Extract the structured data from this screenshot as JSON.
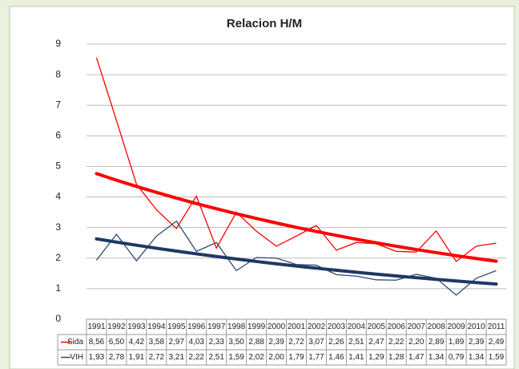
{
  "chart_data": {
    "type": "line",
    "title": "Relacion H/M",
    "categories": [
      "1991",
      "1992",
      "1993",
      "1994",
      "1995",
      "1996",
      "1997",
      "1998",
      "1999",
      "2000",
      "2001",
      "2002",
      "2003",
      "2004",
      "2005",
      "2006",
      "2007",
      "2008",
      "2009",
      "2010",
      "2011"
    ],
    "series": [
      {
        "name": "Sida",
        "color": "#ff0000",
        "trend_color": "#ff0000",
        "trendline": "exponential",
        "values": [
          8.56,
          6.5,
          4.42,
          3.58,
          2.97,
          4.03,
          2.33,
          3.5,
          2.88,
          2.39,
          2.72,
          3.07,
          2.26,
          2.51,
          2.47,
          2.22,
          2.2,
          2.89,
          1.89,
          2.39,
          2.49
        ],
        "value_labels": [
          "8,56",
          "6,50",
          "4,42",
          "3,58",
          "2,97",
          "4,03",
          "2,33",
          "3,50",
          "2,88",
          "2,39",
          "2,72",
          "3,07",
          "2,26",
          "2,51",
          "2,47",
          "2,22",
          "2,20",
          "2,89",
          "1,89",
          "2,39",
          "2,49"
        ]
      },
      {
        "name": "VIH",
        "color": "#2f4a73",
        "trend_color": "#1f3864",
        "trendline": "exponential",
        "values": [
          1.93,
          2.78,
          1.91,
          2.72,
          3.21,
          2.22,
          2.51,
          1.59,
          2.02,
          2.0,
          1.79,
          1.77,
          1.46,
          1.41,
          1.29,
          1.28,
          1.47,
          1.34,
          0.79,
          1.34,
          1.59
        ],
        "value_labels": [
          "1,93",
          "2,78",
          "1,91",
          "2,72",
          "3,21",
          "2,22",
          "2,51",
          "1,59",
          "2,02",
          "2,00",
          "1,79",
          "1,77",
          "1,46",
          "1,41",
          "1,29",
          "1,28",
          "1,47",
          "1,34",
          "0,79",
          "1,34",
          "1,59"
        ]
      }
    ],
    "ylim": [
      0,
      9
    ],
    "yticks": [
      0,
      1,
      2,
      3,
      4,
      5,
      6,
      7,
      8,
      9
    ],
    "grid": true
  }
}
